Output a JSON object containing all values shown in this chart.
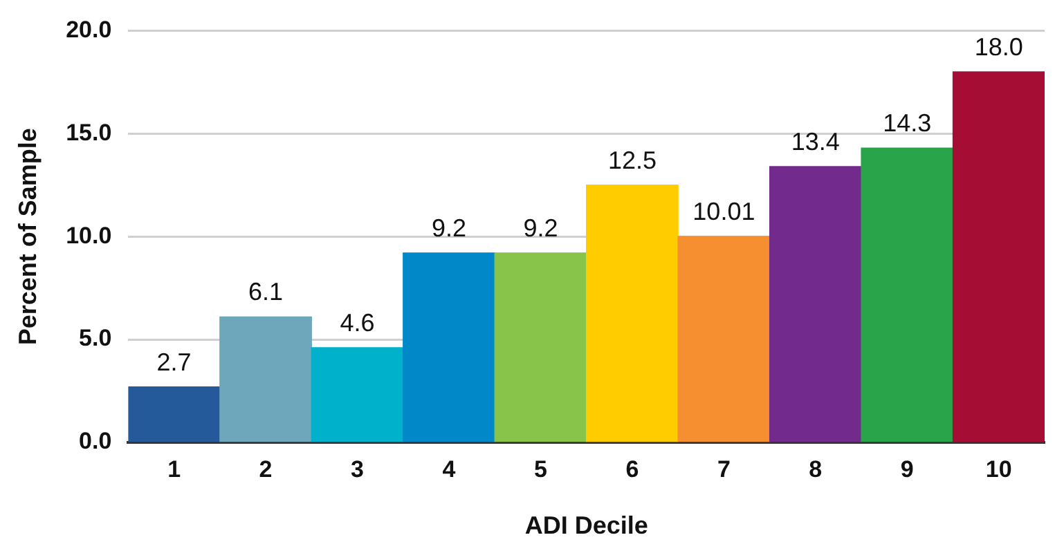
{
  "chart_data": {
    "type": "bar",
    "xlabel": "ADI Decile",
    "ylabel": "Percent of Sample",
    "categories": [
      "1",
      "2",
      "3",
      "4",
      "5",
      "6",
      "7",
      "8",
      "9",
      "10"
    ],
    "values": [
      2.7,
      6.1,
      4.6,
      9.2,
      9.2,
      12.5,
      10.01,
      13.4,
      14.3,
      18.0
    ],
    "value_labels": [
      "2.7",
      "6.1",
      "4.6",
      "9.2",
      "9.2",
      "12.5",
      "10.01",
      "13.4",
      "14.3",
      "18.0"
    ],
    "colors": [
      "#255a9a",
      "#6ea7bb",
      "#00b1cc",
      "#0088c8",
      "#88c34a",
      "#ffcc00",
      "#f68f2f",
      "#722b8d",
      "#29a44a",
      "#a50d35"
    ],
    "ylim": [
      0,
      20
    ],
    "yticks": [
      {
        "value": 0,
        "label": "0.0"
      },
      {
        "value": 5,
        "label": "5.0"
      },
      {
        "value": 10,
        "label": "10.0"
      },
      {
        "value": 15,
        "label": "15.0"
      },
      {
        "value": 20,
        "label": "20.0"
      }
    ],
    "grid": "y",
    "legend": false
  }
}
